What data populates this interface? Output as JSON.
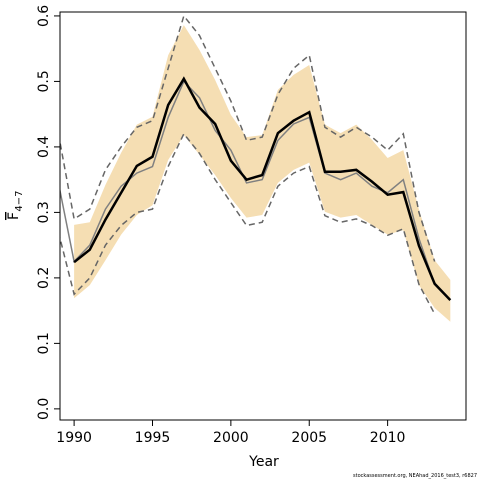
{
  "chart_data": {
    "type": "line",
    "xlabel": "Year",
    "ylabel": "F",
    "ylabel_sub": "4−7",
    "footer": "stockassessment.org, NEAhad_2016_test3, r6827",
    "xlim": [
      1989.1,
      2015.0
    ],
    "ylim": [
      -0.017,
      0.606
    ],
    "xticks": [
      1990,
      1995,
      2000,
      2005,
      2010
    ],
    "yticks": [
      {
        "value": 0,
        "label": "0.0"
      },
      0.1,
      0.2,
      0.3,
      0.4,
      0.5,
      0.6
    ],
    "band": {
      "color": "#f5deb3",
      "x": [
        1990,
        1991,
        1992,
        1993,
        1994,
        1995,
        1996,
        1997,
        1998,
        1999,
        2000,
        2001,
        2002,
        2003,
        2004,
        2005,
        2006,
        2007,
        2008,
        2009,
        2010,
        2011,
        2012,
        2013,
        2014
      ],
      "upper": [
        0.281,
        0.285,
        0.342,
        0.391,
        0.434,
        0.446,
        0.54,
        0.586,
        0.548,
        0.502,
        0.449,
        0.415,
        0.418,
        0.487,
        0.51,
        0.525,
        0.434,
        0.421,
        0.434,
        0.411,
        0.383,
        0.395,
        0.304,
        0.227,
        0.197
      ],
      "lower": [
        0.169,
        0.189,
        0.227,
        0.266,
        0.296,
        0.311,
        0.38,
        0.418,
        0.388,
        0.357,
        0.322,
        0.292,
        0.296,
        0.345,
        0.365,
        0.376,
        0.301,
        0.292,
        0.296,
        0.281,
        0.266,
        0.273,
        0.189,
        0.154,
        0.133
      ]
    },
    "series": [
      {
        "color": "#666666",
        "dash": true,
        "width": 1.5,
        "x": [
          1989,
          1990,
          1991,
          1992,
          1993,
          1994,
          1995,
          1996,
          1997,
          1998,
          1999,
          2000,
          2001,
          2002,
          2003,
          2004,
          2005,
          2006,
          2007,
          2008,
          2009,
          2010,
          2011,
          2012,
          2013
        ],
        "values": [
          0.42,
          0.29,
          0.305,
          0.365,
          0.4,
          0.43,
          0.44,
          0.52,
          0.6,
          0.57,
          0.52,
          0.47,
          0.41,
          0.415,
          0.48,
          0.52,
          0.54,
          0.43,
          0.415,
          0.43,
          0.415,
          0.395,
          0.42,
          0.3,
          0.225
        ]
      },
      {
        "color": "#666666",
        "dash": true,
        "width": 1.5,
        "x": [
          1989,
          1990,
          1991,
          1992,
          1993,
          1994,
          1995,
          1996,
          1997,
          1998,
          1999,
          2000,
          2001,
          2002,
          2003,
          2004,
          2005,
          2006,
          2007,
          2008,
          2009,
          2010,
          2011,
          2012,
          2013
        ],
        "values": [
          0.27,
          0.175,
          0.2,
          0.25,
          0.28,
          0.3,
          0.305,
          0.37,
          0.42,
          0.39,
          0.35,
          0.315,
          0.28,
          0.285,
          0.34,
          0.36,
          0.37,
          0.295,
          0.285,
          0.29,
          0.28,
          0.265,
          0.275,
          0.19,
          0.145
        ]
      },
      {
        "color": "#808080",
        "dash": false,
        "width": 1.5,
        "x": [
          1989,
          1990,
          1991,
          1992,
          1993,
          1994,
          1995,
          1996,
          1997,
          1998,
          1999,
          2000,
          2001,
          2002,
          2003,
          2004,
          2005,
          2006,
          2007,
          2008,
          2009,
          2010,
          2011,
          2012,
          2013
        ],
        "values": [
          0.345,
          0.225,
          0.25,
          0.305,
          0.34,
          0.36,
          0.37,
          0.445,
          0.5,
          0.475,
          0.425,
          0.395,
          0.345,
          0.35,
          0.41,
          0.435,
          0.445,
          0.36,
          0.35,
          0.36,
          0.34,
          0.33,
          0.35,
          0.26,
          0.19
        ]
      },
      {
        "color": "#000000",
        "dash": false,
        "width": 2.5,
        "x": [
          1990,
          1991,
          1992,
          1993,
          1994,
          1995,
          1996,
          1997,
          1998,
          1999,
          2000,
          2001,
          2002,
          2003,
          2004,
          2005,
          2006,
          2007,
          2008,
          2009,
          2010,
          2011,
          2012,
          2013,
          2014
        ],
        "values": [
          0.224,
          0.243,
          0.289,
          0.33,
          0.371,
          0.385,
          0.464,
          0.504,
          0.46,
          0.435,
          0.379,
          0.35,
          0.357,
          0.421,
          0.44,
          0.453,
          0.362,
          0.362,
          0.365,
          0.347,
          0.327,
          0.331,
          0.249,
          0.191,
          0.166
        ]
      }
    ]
  }
}
